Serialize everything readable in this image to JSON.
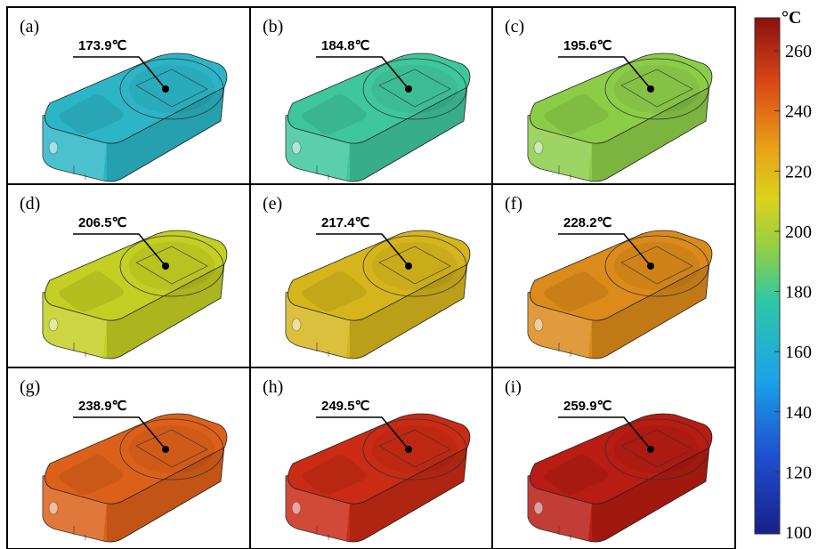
{
  "panels": [
    {
      "label": "(a)",
      "temperature": "173.9℃",
      "color": "#2cb5c6"
    },
    {
      "label": "(b)",
      "temperature": "184.8℃",
      "color": "#3fc79c"
    },
    {
      "label": "(c)",
      "temperature": "195.6℃",
      "color": "#8ccd48"
    },
    {
      "label": "(d)",
      "temperature": "206.5℃",
      "color": "#c3cf22"
    },
    {
      "label": "(e)",
      "temperature": "217.4℃",
      "color": "#d6b51c"
    },
    {
      "label": "(f)",
      "temperature": "228.2℃",
      "color": "#dc8a1a"
    },
    {
      "label": "(g)",
      "temperature": "238.9℃",
      "color": "#dd601a"
    },
    {
      "label": "(h)",
      "temperature": "249.5℃",
      "color": "#c92b14"
    },
    {
      "label": "(i)",
      "temperature": "259.9℃",
      "color": "#b81c12"
    }
  ],
  "colorbar": {
    "unit": "°C",
    "ticks": [
      100,
      120,
      140,
      160,
      180,
      200,
      220,
      240,
      260
    ]
  }
}
